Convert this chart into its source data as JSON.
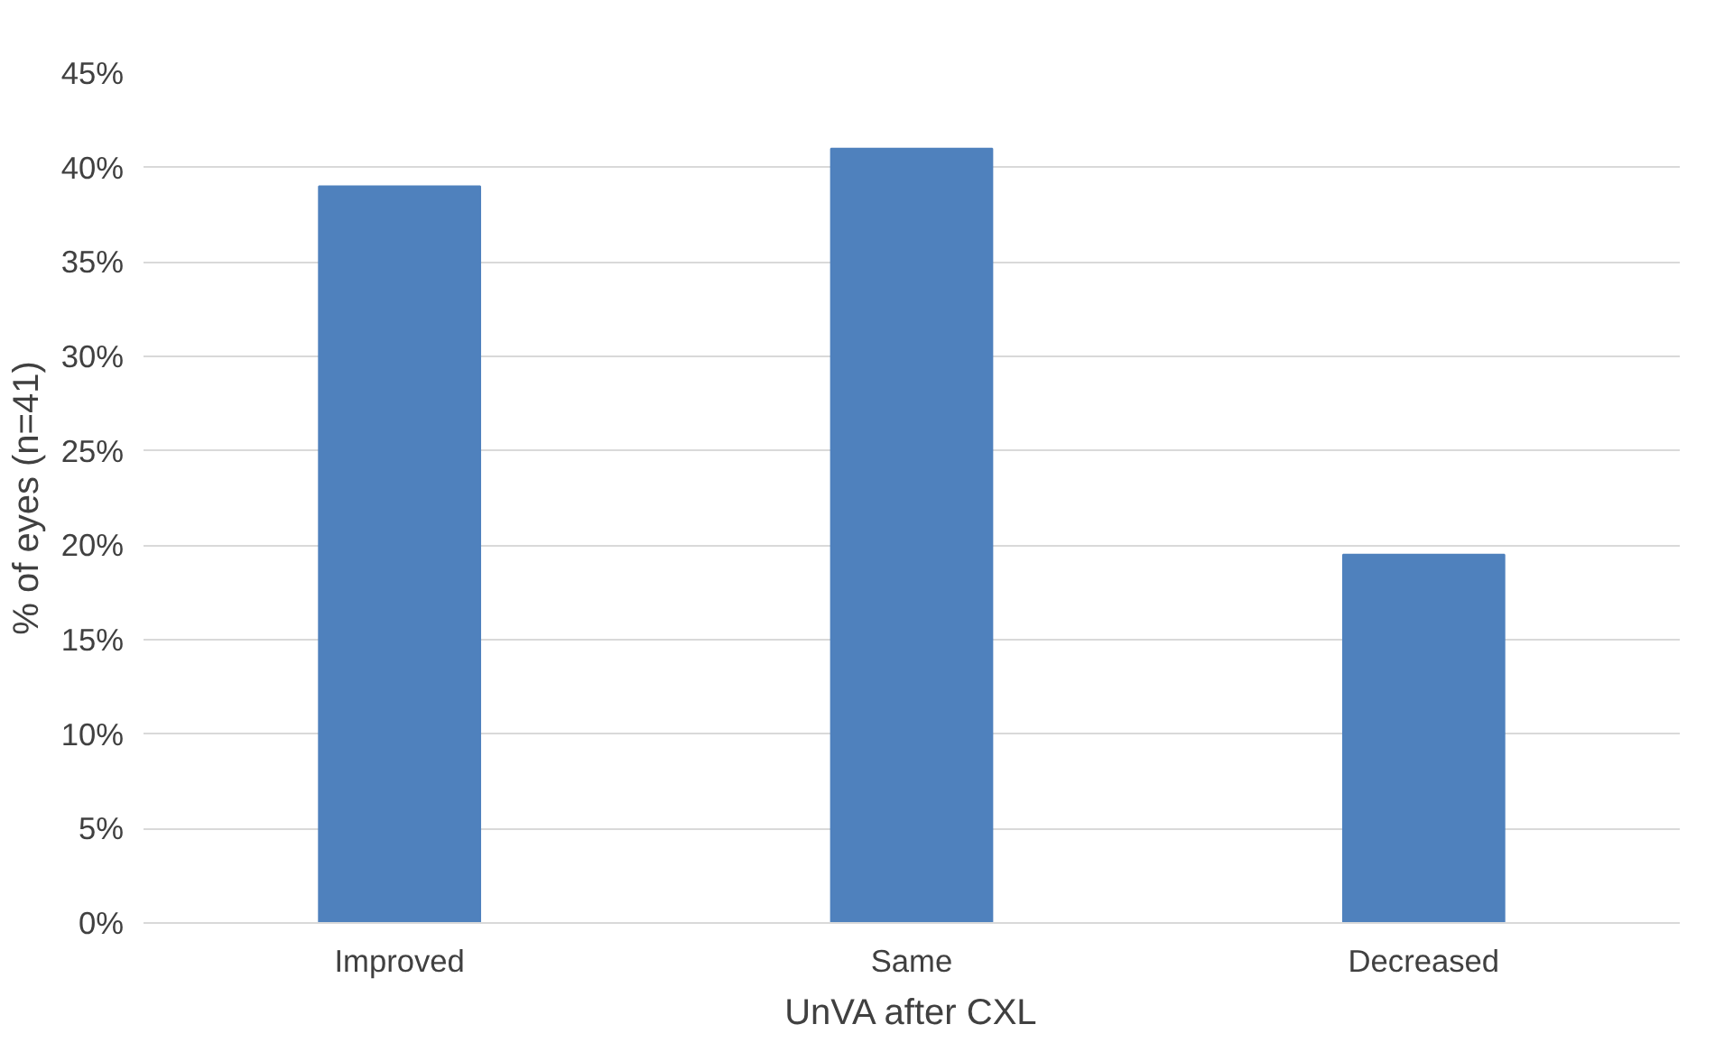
{
  "chart_data": {
    "type": "bar",
    "xlabel": "UnVA after CXL",
    "ylabel": "% of eyes (n=41)",
    "categories": [
      "Improved",
      "Same",
      "Decreased"
    ],
    "values": [
      39,
      41,
      19.5
    ],
    "color": "#4f81bd",
    "ylim": [
      0,
      45
    ],
    "yticks": [
      {
        "value": 0,
        "label": "0%"
      },
      {
        "value": 5,
        "label": "5%"
      },
      {
        "value": 10,
        "label": "10%"
      },
      {
        "value": 15,
        "label": "15%"
      },
      {
        "value": 20,
        "label": "20%"
      },
      {
        "value": 25,
        "label": "25%"
      },
      {
        "value": 30,
        "label": "30%"
      },
      {
        "value": 35,
        "label": "35%"
      },
      {
        "value": 40,
        "label": "40%"
      },
      {
        "value": 45,
        "label": "45%"
      }
    ],
    "grid": "y"
  }
}
